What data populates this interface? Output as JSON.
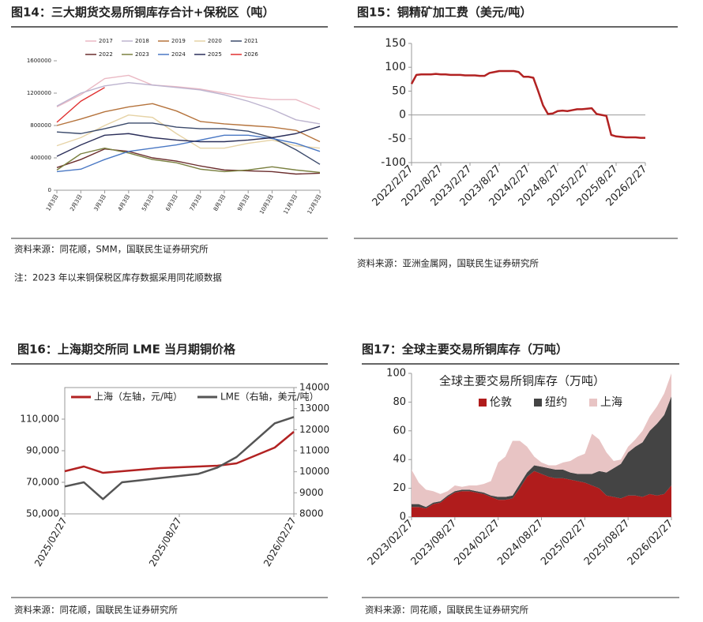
{
  "chart_data": [
    {
      "type": "line",
      "title": "图14：三大期货交易所铜库存合计+保税区（吨）",
      "source": "资料来源：同花顺，SMM，国联民生证券研究所",
      "note": "注：2023 年以来铜保税区库存数据采用同花顺数据",
      "categories": [
        "1月3日",
        "2月3日",
        "3月3日",
        "4月3日",
        "5月3日",
        "6月3日",
        "7月3日",
        "8月3日",
        "9月3日",
        "10月3日",
        "11月3日",
        "12月3日"
      ],
      "ylim": [
        0,
        1600000
      ],
      "yticks": [
        0,
        400000,
        800000,
        1200000,
        1600000
      ],
      "legend": "top",
      "series": [
        {
          "name": "2017",
          "color": "#eab9c4",
          "values": [
            1030000,
            1180000,
            1380000,
            1420000,
            1300000,
            1280000,
            1250000,
            1200000,
            1150000,
            1120000,
            1120000,
            1000000
          ]
        },
        {
          "name": "2018",
          "color": "#bdb4cf",
          "values": [
            1040000,
            1200000,
            1290000,
            1330000,
            1300000,
            1270000,
            1240000,
            1180000,
            1100000,
            1000000,
            870000,
            820000
          ]
        },
        {
          "name": "2019",
          "color": "#b5733c",
          "values": [
            800000,
            880000,
            970000,
            1030000,
            1070000,
            980000,
            850000,
            820000,
            800000,
            780000,
            740000,
            600000
          ]
        },
        {
          "name": "2020",
          "color": "#e6d3a6",
          "values": [
            550000,
            650000,
            800000,
            930000,
            900000,
            700000,
            520000,
            520000,
            580000,
            620000,
            550000,
            520000
          ]
        },
        {
          "name": "2021",
          "color": "#3b4a6b",
          "values": [
            720000,
            700000,
            760000,
            830000,
            830000,
            780000,
            760000,
            760000,
            730000,
            650000,
            500000,
            320000
          ]
        },
        {
          "name": "2022",
          "color": "#6b2d2d",
          "values": [
            280000,
            380000,
            510000,
            480000,
            400000,
            360000,
            300000,
            250000,
            240000,
            230000,
            200000,
            210000
          ]
        },
        {
          "name": "2023",
          "color": "#7a8040",
          "values": [
            250000,
            450000,
            520000,
            460000,
            380000,
            340000,
            260000,
            230000,
            250000,
            290000,
            250000,
            220000
          ]
        },
        {
          "name": "2024",
          "color": "#4a78c4",
          "values": [
            230000,
            260000,
            380000,
            480000,
            520000,
            560000,
            620000,
            680000,
            680000,
            640000,
            580000,
            480000
          ]
        },
        {
          "name": "2025",
          "color": "#2b2f5a",
          "values": [
            420000,
            560000,
            680000,
            700000,
            650000,
            620000,
            600000,
            600000,
            620000,
            650000,
            700000,
            790000
          ]
        },
        {
          "name": "2026",
          "color": "#e03030",
          "values": [
            840000,
            1100000,
            1270000,
            null,
            null,
            null,
            null,
            null,
            null,
            null,
            null,
            null
          ]
        }
      ]
    },
    {
      "type": "line",
      "title": "图15：铜精矿加工费（美元/吨）",
      "source": "资料来源：亚洲金属网，国联民生证券研究所",
      "categories": [
        "2022/2/27",
        null,
        null,
        null,
        null,
        null,
        "2022/8/27",
        null,
        null,
        null,
        null,
        null,
        "2023/2/27",
        null,
        null,
        null,
        null,
        null,
        "2023/8/27",
        null,
        null,
        null,
        null,
        null,
        "2024/2/27",
        null,
        null,
        null,
        null,
        null,
        "2024/8/27",
        null,
        null,
        null,
        null,
        null,
        "2025/2/27",
        null,
        null,
        null,
        null,
        null,
        "2025/8/27",
        null,
        null,
        null,
        null,
        null,
        "2026/2/27"
      ],
      "ylim": [
        -100,
        150
      ],
      "yticks": [
        -100,
        -50,
        0,
        50,
        100,
        150
      ],
      "series": [
        {
          "name": "铜精矿加工费",
          "color": "#b22222",
          "values": [
            65,
            84,
            85,
            85,
            85,
            86,
            85,
            85,
            84,
            84,
            84,
            83,
            83,
            83,
            82,
            82,
            88,
            90,
            92,
            92,
            92,
            92,
            90,
            80,
            80,
            78,
            50,
            20,
            2,
            3,
            8,
            9,
            8,
            10,
            12,
            12,
            13,
            14,
            2,
            0,
            -2,
            -42,
            -45,
            -46,
            -47,
            -47,
            -47,
            -48,
            -48
          ]
        }
      ]
    },
    {
      "type": "line",
      "title": "图16：上海期交所同 LME 当月期铜价格",
      "source": "资料来源：同花顺，国联民生证券研究所",
      "categories": [
        "2025/02/27",
        null,
        null,
        null,
        null,
        null,
        "2025/08/27",
        null,
        null,
        null,
        null,
        null,
        "2026/02/27"
      ],
      "ylim": [
        50000,
        130000
      ],
      "yticks": [
        {
          "value": 50000,
          "label": "50,000"
        },
        {
          "value": 70000,
          "label": "70,000"
        },
        {
          "value": 90000,
          "label": "90,000"
        },
        {
          "value": 110000,
          "label": "110,000"
        }
      ],
      "y2lim": [
        8000,
        14000
      ],
      "y2ticks": [
        8000,
        9000,
        10000,
        11000,
        12000,
        13000,
        14000
      ],
      "legend": "top",
      "series": [
        {
          "name": "上海（左轴，元/吨）",
          "color": "#b22222",
          "values": [
            77000,
            80000,
            76000,
            77000,
            78000,
            79000,
            79500,
            80000,
            80500,
            82000,
            87000,
            92000,
            102000
          ]
        },
        {
          "name": "LME（右轴，美元/吨）",
          "color": "#555555",
          "axis": "y2",
          "values": [
            9300,
            9500,
            8700,
            9500,
            9600,
            9700,
            9800,
            9900,
            10200,
            10700,
            11500,
            12300,
            12600
          ]
        }
      ]
    },
    {
      "type": "area",
      "title": "图17：全球主要交易所铜库存（万吨）",
      "source": "资料来源：同花顺，国联民生证券研究所",
      "plot_title": "全球主要交易所铜库存（万吨）",
      "stacked": true,
      "legend": "top",
      "categories": [
        "2023/02/27",
        null,
        null,
        null,
        null,
        null,
        "2023/08/27",
        null,
        null,
        null,
        null,
        null,
        "2024/02/27",
        null,
        null,
        null,
        null,
        null,
        "2024/08/27",
        null,
        null,
        null,
        null,
        null,
        "2025/02/27",
        null,
        null,
        null,
        null,
        null,
        "2025/08/27",
        null,
        null,
        null,
        null,
        null,
        "2026/02/27"
      ],
      "ylim": [
        0,
        100
      ],
      "yticks": [
        0,
        20,
        40,
        60,
        80,
        100
      ],
      "series": [
        {
          "name": "伦敦",
          "color": "#b01c1c",
          "values": [
            7,
            7,
            6,
            9,
            10,
            14,
            17,
            18,
            18,
            17,
            16,
            14,
            12,
            12,
            13,
            20,
            28,
            32,
            30,
            28,
            27,
            27,
            26,
            25,
            24,
            22,
            20,
            15,
            14,
            13,
            15,
            15,
            14,
            16,
            15,
            16,
            22
          ]
        },
        {
          "name": "纽约",
          "color": "#444444",
          "values": [
            2,
            2,
            1,
            1,
            1,
            1,
            1,
            1,
            1,
            1,
            1,
            1,
            2,
            2,
            2,
            3,
            3,
            4,
            5,
            6,
            6,
            6,
            5,
            5,
            6,
            8,
            12,
            16,
            20,
            24,
            30,
            34,
            38,
            44,
            50,
            55,
            62
          ]
        },
        {
          "name": "上海",
          "color": "#e8c4c4",
          "values": [
            24,
            15,
            12,
            8,
            5,
            3,
            4,
            2,
            3,
            4,
            6,
            10,
            24,
            28,
            38,
            30,
            18,
            6,
            3,
            2,
            3,
            5,
            8,
            12,
            14,
            28,
            22,
            14,
            5,
            3,
            4,
            5,
            8,
            10,
            12,
            15,
            16
          ]
        }
      ]
    }
  ]
}
